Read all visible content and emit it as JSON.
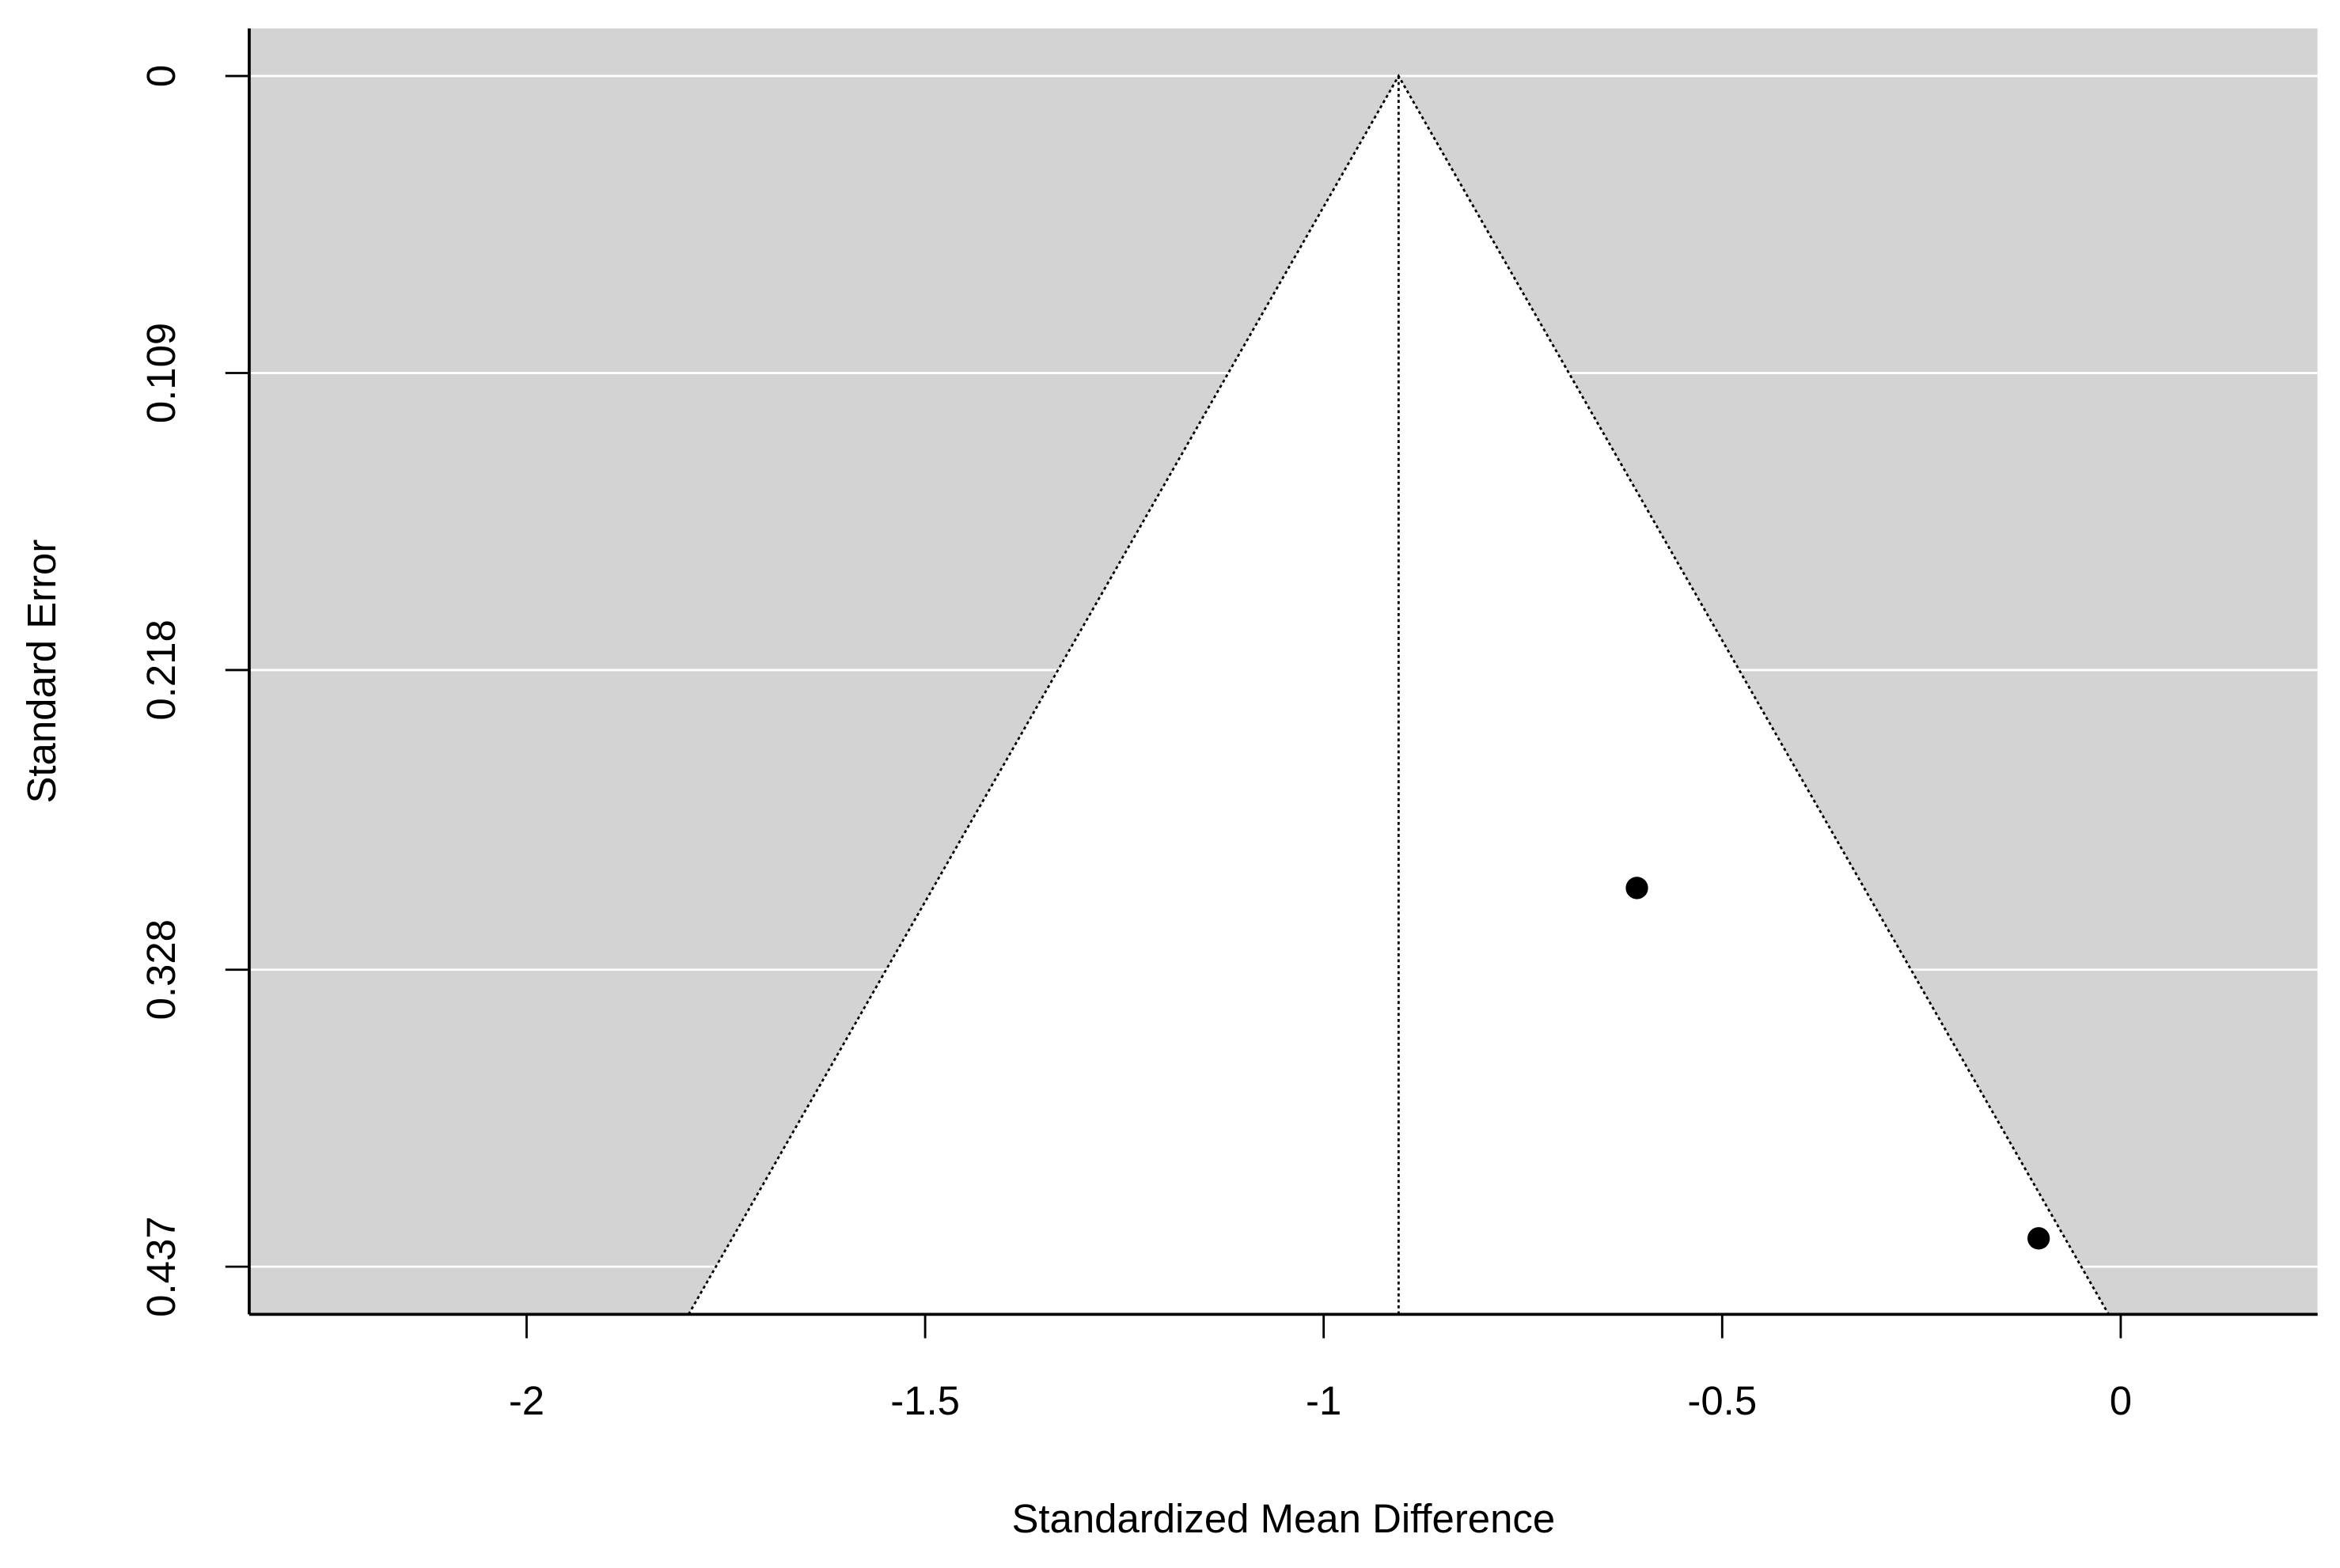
{
  "chart_data": {
    "type": "funnel",
    "xlabel": "Standardized Mean Difference",
    "ylabel": "Standard Error",
    "x": [
      -0.607,
      -0.103
    ],
    "values": [
      0.298,
      0.4266
    ],
    "color": "#000000",
    "center": -0.906,
    "z": 1.96,
    "xlim": [
      -2.348,
      0.247
    ],
    "xticks": [
      -2,
      -1.5,
      -1,
      -0.5,
      0
    ],
    "ylim": [
      -0.0175,
      0.4545
    ],
    "yticks": [
      0,
      0.109,
      0.218,
      0.328,
      0.437
    ],
    "y_reversed": true,
    "grid": true,
    "background": "#d3d3d3"
  }
}
